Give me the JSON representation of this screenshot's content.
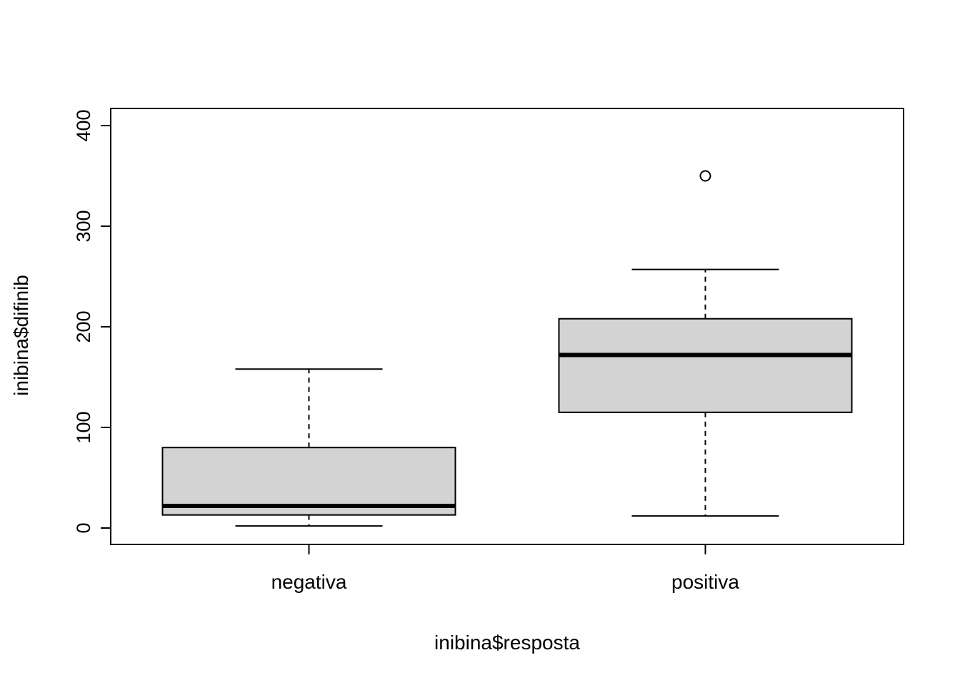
{
  "figure": {
    "xlabel": "inibina$resposta",
    "ylabel": "inibina$difinib"
  },
  "chart_data": {
    "type": "boxplot",
    "title": "",
    "xlabel": "inibina$resposta",
    "ylabel": "inibina$difinib",
    "categories": [
      "negativa",
      "positiva"
    ],
    "series": [
      {
        "name": "negativa",
        "min": 2,
        "q1": 13,
        "median": 22,
        "q3": 80,
        "max": 158,
        "outliers": []
      },
      {
        "name": "positiva",
        "min": 12,
        "q1": 115,
        "median": 172,
        "q3": 208,
        "max": 257,
        "outliers": [
          350
        ]
      }
    ],
    "ylim": [
      0,
      400
    ],
    "yticks": [
      0,
      100,
      200,
      300,
      400
    ],
    "grid": false,
    "box_fill": "#d3d3d3",
    "stroke": "#000000",
    "background": "#ffffff"
  }
}
